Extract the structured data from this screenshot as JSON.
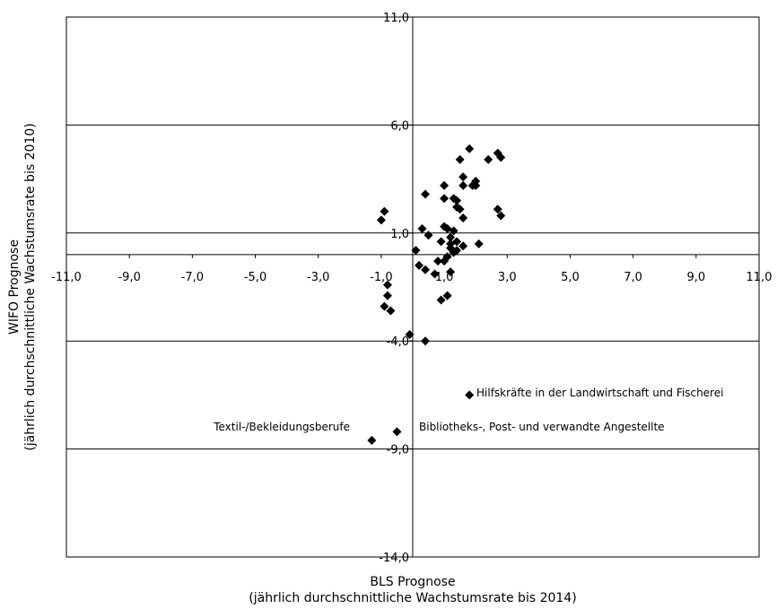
{
  "chart_data": {
    "type": "scatter",
    "title": "",
    "xlabel": [
      "BLS Prognose",
      "(jährlich durchschnittliche Wachstumsrate bis 2014)"
    ],
    "ylabel": [
      "WIFO Prognose",
      "(jährlich durchschnittliche Wachstumsrate bis 2010)"
    ],
    "xlim": [
      -11,
      11
    ],
    "ylim": [
      -14,
      11
    ],
    "x_ticks": [
      "-11,0",
      "-9,0",
      "-7,0",
      "-5,0",
      "-3,0",
      "-1,0",
      "1,0",
      "3,0",
      "5,0",
      "7,0",
      "9,0",
      "11,0"
    ],
    "y_ticks": [
      "11,0",
      "6,0",
      "1,0",
      "-4,0",
      "-9,0",
      "-14,0"
    ],
    "grid": "horizontal",
    "marker": "diamond",
    "marker_color": "#000000",
    "series": [
      {
        "points": [
          [
            1.8,
            4.9
          ],
          [
            2.7,
            4.7
          ],
          [
            2.8,
            4.5
          ],
          [
            2.4,
            4.4
          ],
          [
            1.5,
            4.4
          ],
          [
            1.6,
            3.6
          ],
          [
            2.0,
            3.4
          ],
          [
            1.6,
            3.2
          ],
          [
            1.9,
            3.2
          ],
          [
            2.0,
            3.2
          ],
          [
            1.0,
            3.2
          ],
          [
            0.4,
            2.8
          ],
          [
            1.0,
            2.6
          ],
          [
            1.3,
            2.6
          ],
          [
            1.4,
            2.5
          ],
          [
            1.4,
            2.2
          ],
          [
            1.5,
            2.1
          ],
          [
            2.7,
            2.1
          ],
          [
            -0.9,
            2.0
          ],
          [
            2.8,
            1.8
          ],
          [
            1.6,
            1.7
          ],
          [
            -1.0,
            1.6
          ],
          [
            1.0,
            1.3
          ],
          [
            0.3,
            1.2
          ],
          [
            1.1,
            1.2
          ],
          [
            1.3,
            1.1
          ],
          [
            0.5,
            0.9
          ],
          [
            1.2,
            0.8
          ],
          [
            0.9,
            0.6
          ],
          [
            1.4,
            0.6
          ],
          [
            1.2,
            0.5
          ],
          [
            1.6,
            0.4
          ],
          [
            2.1,
            0.5
          ],
          [
            1.2,
            0.3
          ],
          [
            1.4,
            0.2
          ],
          [
            0.1,
            0.2
          ],
          [
            1.3,
            0.1
          ],
          [
            1.1,
            -0.1
          ],
          [
            1.0,
            -0.3
          ],
          [
            0.8,
            -0.3
          ],
          [
            0.2,
            -0.5
          ],
          [
            0.4,
            -0.7
          ],
          [
            1.2,
            -0.8
          ],
          [
            0.7,
            -0.9
          ],
          [
            -0.8,
            -1.4
          ],
          [
            -0.8,
            -1.9
          ],
          [
            1.1,
            -1.9
          ],
          [
            0.9,
            -2.1
          ],
          [
            -0.9,
            -2.4
          ],
          [
            -0.7,
            -2.6
          ],
          [
            -0.1,
            -3.7
          ],
          [
            0.4,
            -4.0
          ],
          [
            1.8,
            -6.5
          ],
          [
            -0.5,
            -8.2
          ],
          [
            -1.3,
            -8.6
          ]
        ]
      }
    ],
    "annotations": [
      "Hilfskräfte in der Landwirtschaft und Fischerei",
      "Bibliotheks-, Post- und verwandte Angestellte",
      "Textil-/Bekleidungsberufe"
    ]
  }
}
